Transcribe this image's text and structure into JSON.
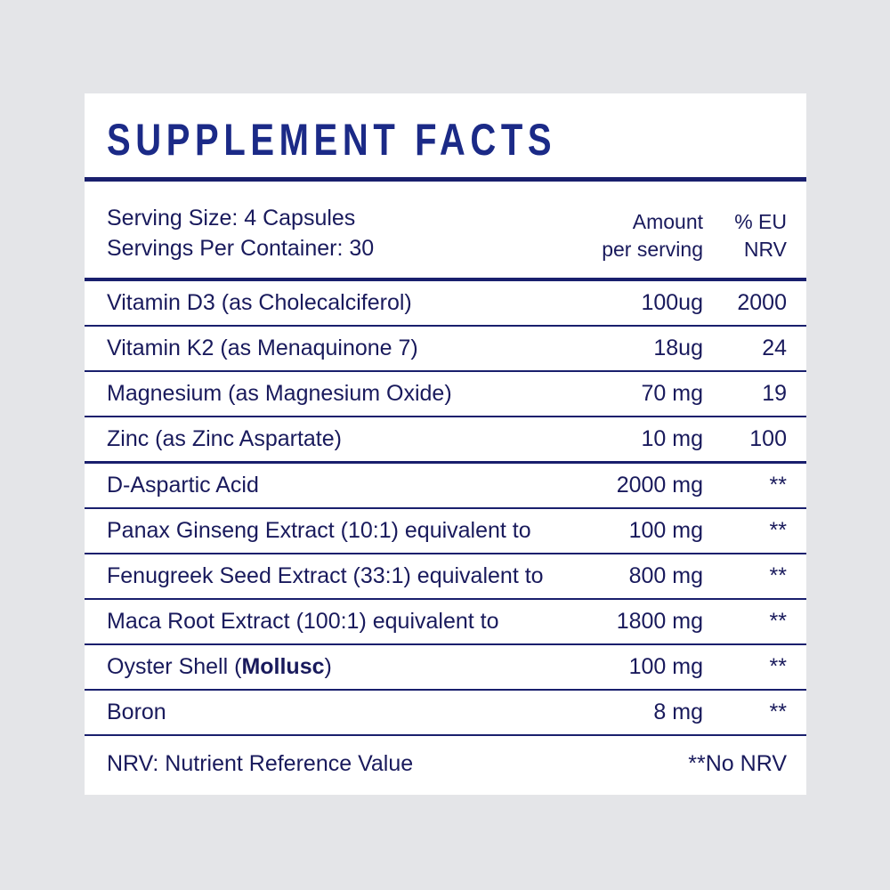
{
  "panel": {
    "title": "SUPPLEMENT FACTS",
    "serving": {
      "size": "Serving Size: 4 Capsules",
      "per_container": "Servings Per Container: 30"
    },
    "columns": {
      "amount_line1": "Amount",
      "amount_line2": "per serving",
      "nrv_line1": "% EU",
      "nrv_line2": "NRV"
    },
    "rows": [
      {
        "pre": "Vitamin D3 (as Cholecalciferol)",
        "amount": "100ug",
        "nrv": "2000",
        "heavy_divider": false
      },
      {
        "pre": "Vitamin K2 (as Menaquinone 7)",
        "amount": "18ug",
        "nrv": "24",
        "heavy_divider": false
      },
      {
        "pre": "Magnesium (as Magnesium Oxide)",
        "amount": "70 mg",
        "nrv": "19",
        "heavy_divider": false
      },
      {
        "pre": "Zinc (as Zinc Aspartate)",
        "amount": "10 mg",
        "nrv": "100",
        "heavy_divider": true
      },
      {
        "pre": "D-Aspartic Acid",
        "amount": "2000 mg",
        "nrv": "**",
        "heavy_divider": false
      },
      {
        "pre": "Panax Ginseng Extract (10:1) equivalent to",
        "amount": "100 mg",
        "nrv": "**",
        "heavy_divider": false
      },
      {
        "pre": "Fenugreek Seed Extract (33:1) equivalent to",
        "amount": "800 mg",
        "nrv": "**",
        "heavy_divider": false
      },
      {
        "pre": "Maca Root Extract (100:1) equivalent to",
        "amount": "1800 mg",
        "nrv": "**",
        "heavy_divider": false
      },
      {
        "pre": "Oyster Shell (",
        "bold": "Mollusc",
        "post": ")",
        "amount": "100 mg",
        "nrv": "**",
        "heavy_divider": false
      },
      {
        "pre": "Boron",
        "amount": "8 mg",
        "nrv": "**",
        "heavy_divider": false
      }
    ],
    "footer": {
      "note": "NRV: Nutrient Reference Value",
      "no_nrv": "**No NRV"
    },
    "colors": {
      "background": "#e4e5e8",
      "card": "#ffffff",
      "title_blue": "#1b2a87",
      "body_navy": "#191a5c",
      "line_navy": "#191f6d"
    }
  }
}
